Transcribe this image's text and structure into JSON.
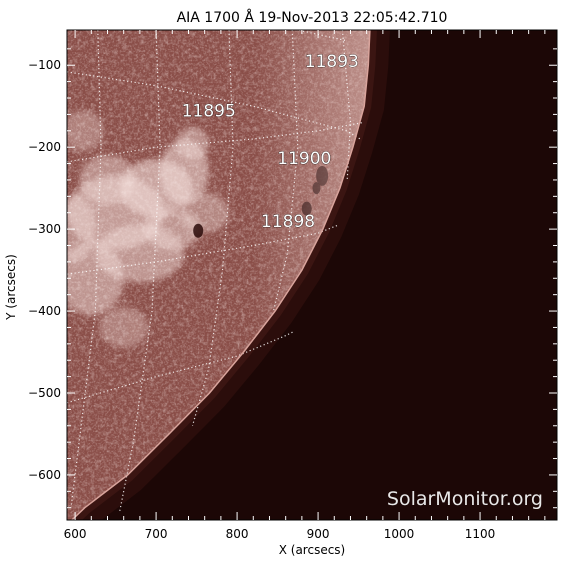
{
  "chart_data": {
    "type": "heatmap",
    "title": "AIA 1700 Å 19-Nov-2013 22:05:42.710",
    "xlabel": "X (arcsecs)",
    "ylabel": "Y (arcsecs)",
    "xlim": [
      590,
      1195
    ],
    "ylim": [
      -655,
      -57
    ],
    "x_ticks": [
      600,
      700,
      800,
      900,
      1000,
      1100
    ],
    "y_ticks": [
      -100,
      -200,
      -300,
      -400,
      -500,
      -600
    ],
    "grid": "heliographic grid (dotted)",
    "limb": [
      {
        "x": 964,
        "y": -57
      },
      {
        "x": 962,
        "y": -100
      },
      {
        "x": 957,
        "y": -150
      },
      {
        "x": 943,
        "y": -200
      },
      {
        "x": 927,
        "y": -250
      },
      {
        "x": 906,
        "y": -300
      },
      {
        "x": 880,
        "y": -350
      },
      {
        "x": 847,
        "y": -400
      },
      {
        "x": 808,
        "y": -450
      },
      {
        "x": 766,
        "y": -500
      },
      {
        "x": 716,
        "y": -550
      },
      {
        "x": 665,
        "y": -600
      },
      {
        "x": 612,
        "y": -640
      },
      {
        "x": 596,
        "y": -655
      }
    ],
    "regions": [
      {
        "label": "11893",
        "x": 917,
        "y": -95
      },
      {
        "label": "11895",
        "x": 765,
        "y": -155
      },
      {
        "label": "11900",
        "x": 883,
        "y": -213
      },
      {
        "label": "11898",
        "x": 863,
        "y": -290
      }
    ],
    "watermark": "SolarMonitor.org",
    "colors": {
      "disk": "#8a4e48",
      "disk_bright": "#b57a72",
      "plage": "#f2dcd8",
      "limb_bright": "#e9c9c3",
      "off_disk": "#1c0706",
      "grid": "#ffffff",
      "axes": "#000000"
    }
  }
}
